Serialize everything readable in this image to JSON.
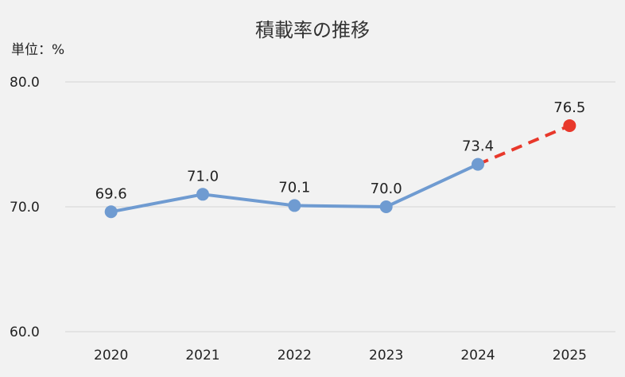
{
  "chart_data": {
    "type": "line",
    "title": "積載率の推移",
    "unit_label": "単位：%",
    "categories": [
      "2020",
      "2021",
      "2022",
      "2023",
      "2024",
      "2025"
    ],
    "x": [
      "2020",
      "2021",
      "2022",
      "2023",
      "2024",
      "2025"
    ],
    "series": [
      {
        "values": [
          69.6,
          71.0,
          70.1,
          70.0,
          73.4,
          76.5
        ],
        "labels": [
          "69.6",
          "71.0",
          "70.1",
          "70.0",
          "73.4",
          "76.5"
        ],
        "color": "#6f9bd1",
        "projection_color": "#e8382b",
        "projection_from": "2024",
        "projection_style": "dashed"
      }
    ],
    "ylim": [
      60.0,
      80.0
    ],
    "yticks": [
      "60.0",
      "70.0",
      "80.0"
    ],
    "grid": true,
    "legend": "none"
  }
}
